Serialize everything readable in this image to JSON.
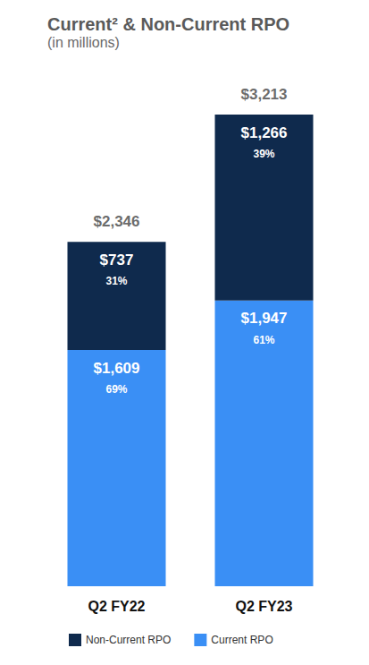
{
  "chart_data": {
    "type": "bar",
    "title": "Current² & Non-Current RPO",
    "subtitle": "(in millions)",
    "categories": [
      "Q2 FY22",
      "Q2 FY23"
    ],
    "stacked": true,
    "data_labels": true,
    "tick_labels": "x",
    "legend": "bottom",
    "ylim": [
      0,
      3500
    ],
    "series": [
      {
        "name": "Current RPO",
        "color": "#3a8ff5",
        "values": [
          1609,
          1947
        ],
        "value_labels": [
          "$1,609",
          "$1,947"
        ],
        "share_labels": [
          "69%",
          "61%"
        ]
      },
      {
        "name": "Non-Current RPO",
        "color": "#0f2a4d",
        "values": [
          737,
          1266
        ],
        "value_labels": [
          "$737",
          "$1,266"
        ],
        "share_labels": [
          "31%",
          "39%"
        ]
      }
    ],
    "totals": [
      2346,
      3213
    ],
    "total_labels": [
      "$2,346",
      "$3,213"
    ]
  }
}
